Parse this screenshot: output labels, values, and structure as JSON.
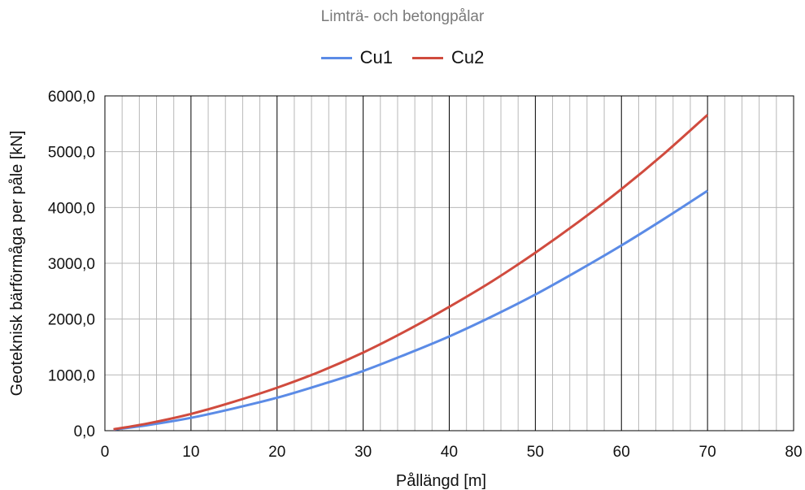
{
  "chart_data": {
    "type": "line",
    "title": "Limträ- och betongpålar",
    "xlabel": "Pållängd [m]",
    "ylabel": "Geoteknisk bärförmåga per påle [kN]",
    "xlim": [
      0,
      80
    ],
    "ylim": [
      0,
      6000
    ],
    "x_ticks": [
      "0",
      "10",
      "20",
      "30",
      "40",
      "50",
      "60",
      "70",
      "80"
    ],
    "y_ticks": [
      "0,0",
      "1000,0",
      "2000,0",
      "3000,0",
      "4000,0",
      "5000,0",
      "6000,0"
    ],
    "grid": "major and minor",
    "legend_position": "top",
    "x": [
      1,
      5,
      10,
      15,
      20,
      25,
      30,
      35,
      40,
      45,
      50,
      55,
      60,
      65,
      70
    ],
    "series": [
      {
        "name": "Cu1",
        "color": "#5b8be6",
        "values": [
          20,
          100,
          230,
          400,
          590,
          820,
          1070,
          1370,
          1690,
          2050,
          2440,
          2870,
          3320,
          3800,
          4300
        ]
      },
      {
        "name": "Cu2",
        "color": "#d04b3e",
        "values": [
          25,
          130,
          300,
          520,
          770,
          1060,
          1400,
          1790,
          2220,
          2680,
          3190,
          3740,
          4330,
          4970,
          5660
        ]
      }
    ]
  }
}
